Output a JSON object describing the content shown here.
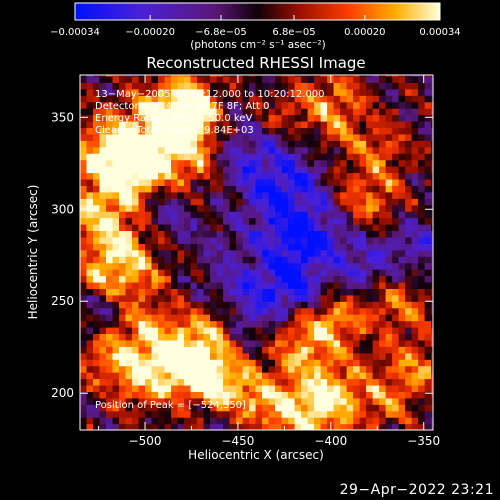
{
  "chart_data": {
    "type": "heatmap",
    "title": "Reconstructed RHESSI Image",
    "xlabel": "Heliocentric X (arcsec)",
    "ylabel": "Heliocentric Y (arcsec)",
    "xlim": [
      -535,
      -345
    ],
    "ylim": [
      180,
      373
    ],
    "x_ticks": [
      -500,
      -450,
      -400,
      -350
    ],
    "x_tick_labels": [
      "−500",
      "−450",
      "−400",
      "−350"
    ],
    "y_ticks": [
      200,
      250,
      300,
      350
    ],
    "y_tick_labels": [
      "200",
      "250",
      "300",
      "350"
    ],
    "colorbar": {
      "range": [
        -0.00034,
        0.00034
      ],
      "ticks": [
        -0.00034,
        -0.0002,
        -6.8e-05,
        6.8e-05,
        0.0002,
        0.00034
      ],
      "tick_labels": [
        "−0.00034",
        "−0.00020",
        "−6.8e−05",
        "6.8e−05",
        "0.00020",
        "0.00034"
      ],
      "unit_label": "(photons cm⁻² s⁻¹ asec⁻²)"
    },
    "annotations": [
      "13−May−2005 10:14:12.000 to 10:20:12.000",
      "Detectors: 3F 4F 5F 6F 7F 8F; Att 0",
      "Energy Range: 25.0 − 50.0 keV",
      "Clean    Total Counts: 9.84E+03"
    ],
    "peak_label": "Position of Peak = [−524,350]",
    "peak_position": [
      -524,
      350
    ],
    "grid": false
  },
  "footer": {
    "date": "29−Apr−2022 23:21"
  }
}
